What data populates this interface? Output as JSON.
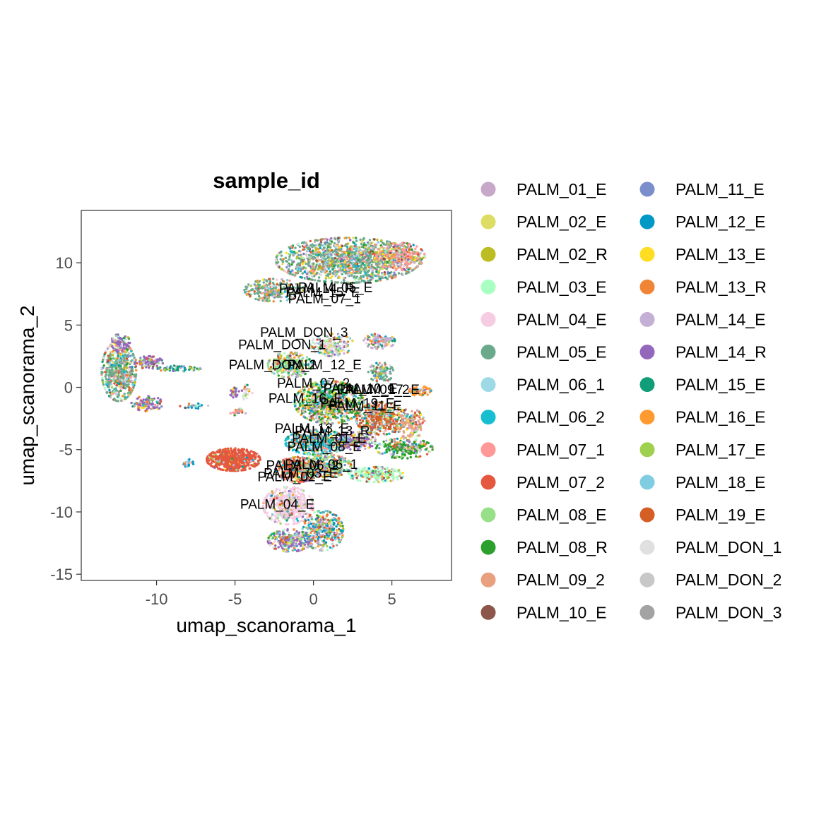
{
  "chart_data": {
    "type": "scatter",
    "title": "sample_id",
    "xlabel": "umap_scanorama_1",
    "ylabel": "umap_scanorama_2",
    "xlim": [
      -14.8,
      8.8
    ],
    "ylim": [
      -15.5,
      14.2
    ],
    "x_ticks": [
      -10,
      -5,
      0,
      5
    ],
    "y_ticks": [
      10,
      5,
      0,
      -5,
      -10,
      -15
    ],
    "grid": false,
    "legend_position": "right",
    "legend_columns": 2,
    "series": [
      {
        "name": "PALM_01_E",
        "color": "#C8A8C8"
      },
      {
        "name": "PALM_02_E",
        "color": "#DDDD66"
      },
      {
        "name": "PALM_02_R",
        "color": "#BCBD22"
      },
      {
        "name": "PALM_03_E",
        "color": "#AAFFC3"
      },
      {
        "name": "PALM_04_E",
        "color": "#F5CCE2"
      },
      {
        "name": "PALM_05_E",
        "color": "#6AAA8A"
      },
      {
        "name": "PALM_06_1",
        "color": "#9EDAE5"
      },
      {
        "name": "PALM_06_2",
        "color": "#17BECF"
      },
      {
        "name": "PALM_07_1",
        "color": "#FF9896"
      },
      {
        "name": "PALM_07_2",
        "color": "#E5573F"
      },
      {
        "name": "PALM_08_E",
        "color": "#98DF8A"
      },
      {
        "name": "PALM_08_R",
        "color": "#2CA02C"
      },
      {
        "name": "PALM_09_2",
        "color": "#E8A07E"
      },
      {
        "name": "PALM_10_E",
        "color": "#8C564B"
      },
      {
        "name": "PALM_11_E",
        "color": "#7B8ECC"
      },
      {
        "name": "PALM_12_E",
        "color": "#0099C6"
      },
      {
        "name": "PALM_13_E",
        "color": "#FFDD22"
      },
      {
        "name": "PALM_13_R",
        "color": "#F08535"
      },
      {
        "name": "PALM_14_E",
        "color": "#C5B0D5"
      },
      {
        "name": "PALM_14_R",
        "color": "#9467BD"
      },
      {
        "name": "PALM_15_E",
        "color": "#109E78"
      },
      {
        "name": "PALM_16_E",
        "color": "#FF9A30"
      },
      {
        "name": "PALM_17_E",
        "color": "#A0D050"
      },
      {
        "name": "PALM_18_E",
        "color": "#80CCE0"
      },
      {
        "name": "PALM_19_E",
        "color": "#D55E24"
      },
      {
        "name": "PALM_DON_1",
        "color": "#E0E0E0"
      },
      {
        "name": "PALM_DON_2",
        "color": "#C8C8C8"
      },
      {
        "name": "PALM_DON_3",
        "color": "#A3A3A3"
      }
    ],
    "annotations": [
      {
        "text": "PALM_05_E",
        "x": 1.4,
        "y": 8.0
      },
      {
        "text": "PALM_14_R",
        "x": 0.2,
        "y": 7.9
      },
      {
        "text": "PALM_15_E",
        "x": 0.6,
        "y": 7.6
      },
      {
        "text": "PALM_07_1",
        "x": 0.7,
        "y": 7.1
      },
      {
        "text": "PALM_DON_3",
        "x": -0.6,
        "y": 4.4
      },
      {
        "text": "PALM_DON_1",
        "x": -2.0,
        "y": 3.4
      },
      {
        "text": "PALM_DON_2",
        "x": -2.6,
        "y": 1.8
      },
      {
        "text": "PALM_12_E",
        "x": 0.7,
        "y": 1.8
      },
      {
        "text": "PALM_07_2",
        "x": 0.0,
        "y": 0.3
      },
      {
        "text": "PALM_10_E",
        "x": 3.0,
        "y": -0.1
      },
      {
        "text": "PALM_09_2",
        "x": 3.8,
        "y": -0.2
      },
      {
        "text": "PALM_17_E",
        "x": 4.4,
        "y": -0.2
      },
      {
        "text": "PALM_16_E",
        "x": -0.5,
        "y": -0.9
      },
      {
        "text": "PALM_19_E",
        "x": 2.8,
        "y": -1.3
      },
      {
        "text": "PALM_11_E",
        "x": 3.3,
        "y": -1.5
      },
      {
        "text": "PALM_13_E",
        "x": -0.1,
        "y": -3.3
      },
      {
        "text": "PALM_13_R",
        "x": 1.2,
        "y": -3.5
      },
      {
        "text": "PALM_01_E",
        "x": 1.0,
        "y": -4.1
      },
      {
        "text": "PALM_08_E",
        "x": 0.7,
        "y": -4.8
      },
      {
        "text": "PALM_06_1",
        "x": 0.5,
        "y": -6.2
      },
      {
        "text": "PALM_06_2",
        "x": -0.7,
        "y": -6.3
      },
      {
        "text": "PALM_03_E",
        "x": -0.8,
        "y": -6.9
      },
      {
        "text": "PALM_02_E",
        "x": -1.2,
        "y": -7.2
      },
      {
        "text": "PALM_04_E",
        "x": -2.3,
        "y": -9.4
      }
    ]
  }
}
